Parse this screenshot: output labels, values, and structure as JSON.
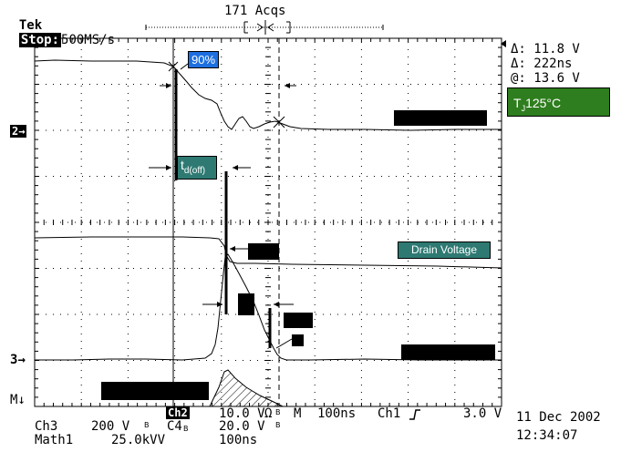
{
  "header": {
    "brand": "Tek",
    "run_state": "Stop:",
    "sample_rate": "500MS/s",
    "acqs": "171 Acqs"
  },
  "measurements": {
    "line1": "Δ: 11.8 V",
    "line2": "Δ: 222ns",
    "line3": "@: 13.6 V"
  },
  "annotations": {
    "pct90": "90%",
    "td_main": "t",
    "td_sub": "d(off)",
    "drain_voltage": "Drain Voltage",
    "tj_main": "T",
    "tj_sub": "J",
    "tj_rest": "125°C"
  },
  "markers": {
    "ch2": "2",
    "ch3": "3",
    "math": "M"
  },
  "footer": {
    "ch3_label": "Ch3",
    "ch3_scale": "200 V",
    "ch2_label": "Ch2",
    "ch2_scale": "10.0 V",
    "omega": "Ω",
    "m_label": "M",
    "timebase": "100ns",
    "trigger_src": "Ch1",
    "trigger_level": "3.0 V",
    "c4_label": "C4",
    "c4_scale": "20.0 V",
    "math_label": "Math1",
    "math_scale": "25.0kVV",
    "math_time": "100ns",
    "bw": "B",
    "date": "11 Dec 2002",
    "time": "12:34:07"
  },
  "colors": {
    "blue_box": "#1d6fe0",
    "teal_box": "#2e7a73",
    "green_box": "#2e7d1e"
  }
}
